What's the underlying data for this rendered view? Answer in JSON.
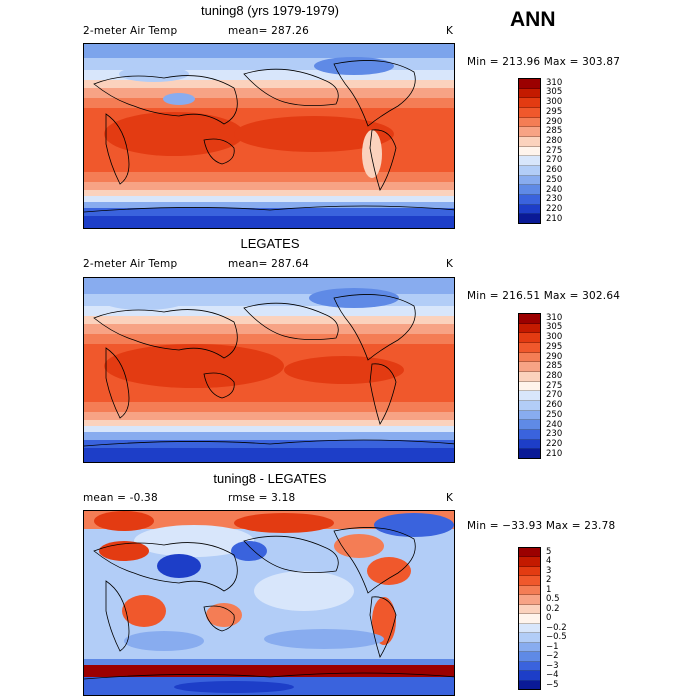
{
  "season": "ANN",
  "panels": [
    {
      "title": "tuning8 (yrs 1979-1979)",
      "left_label": "2-meter Air Temp",
      "mid_label": "mean= 287.26",
      "units": "K",
      "minmax": "Min = 213.96 Max = 303.87",
      "type": "field",
      "legend": [
        "310",
        "305",
        "300",
        "295",
        "290",
        "285",
        "280",
        "275",
        "270",
        "260",
        "250",
        "240",
        "230",
        "220",
        "210"
      ]
    },
    {
      "title": "LEGATES",
      "left_label": "2-meter Air Temp",
      "mid_label": "mean= 287.64",
      "units": "K",
      "minmax": "Min = 216.51 Max = 302.64",
      "type": "field",
      "legend": [
        "310",
        "305",
        "300",
        "295",
        "290",
        "285",
        "280",
        "275",
        "270",
        "260",
        "250",
        "240",
        "230",
        "220",
        "210"
      ]
    },
    {
      "title": "tuning8 - LEGATES",
      "left_label": "mean =   -0.38",
      "mid_label": "rmse =    3.18",
      "units": "K",
      "minmax": "Min = −33.93 Max =   23.78",
      "type": "diff",
      "legend": [
        "5",
        "4",
        "3",
        "2",
        "1",
        "0.5",
        "0.2",
        "0",
        "−0.2",
        "−0.5",
        "−1",
        "−2",
        "−3",
        "−4",
        "−5"
      ]
    }
  ],
  "field_colors": [
    "#9b0000",
    "#c41a00",
    "#e33b12",
    "#f0582c",
    "#f47d55",
    "#f7a385",
    "#fbd2bd",
    "#fff4ec",
    "#d8e6fb",
    "#b2cdf7",
    "#88acef",
    "#5f8ae6",
    "#3a63dd",
    "#1d3ec8",
    "#0a1a96"
  ],
  "diff_colors": [
    "#9b0000",
    "#c41a00",
    "#e33b12",
    "#f0582c",
    "#f47d55",
    "#f7a385",
    "#fbd2bd",
    "#fff4ec",
    "#d8e6fb",
    "#b2cdf7",
    "#88acef",
    "#5f8ae6",
    "#3a63dd",
    "#1d3ec8",
    "#0a1a96"
  ]
}
